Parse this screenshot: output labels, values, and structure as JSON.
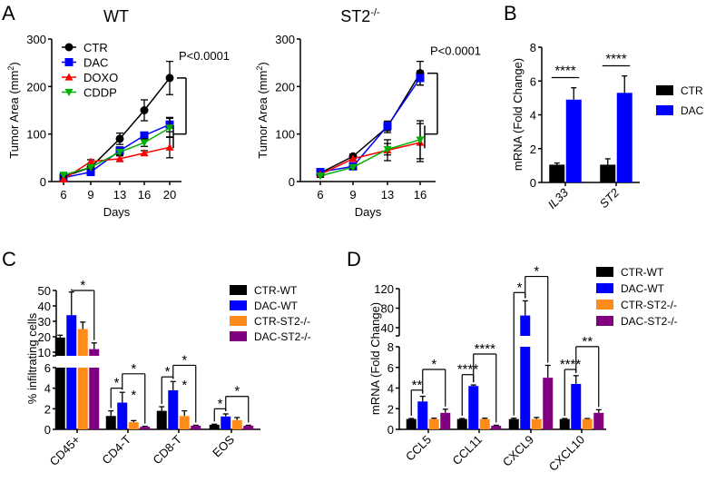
{
  "panel_labels": [
    "A",
    "B",
    "C",
    "D"
  ],
  "chart_data": [
    {
      "id": "A-WT",
      "type": "line",
      "title": "WT",
      "xlabel": "Days",
      "ylabel": {
        "main": "Tumor Area (mm",
        "sup": "2",
        "end": ")"
      },
      "categories": [
        "6",
        "9",
        "13",
        "16",
        "20"
      ],
      "ylim": [
        0,
        300
      ],
      "yticks": [
        0,
        100,
        200,
        300
      ],
      "legend": {
        "placement": "top-left",
        "entries": [
          "CTR",
          "DAC",
          "DOXO",
          "CDDP"
        ]
      },
      "series": [
        {
          "name": "CTR",
          "color": "#000000",
          "marker": "circle",
          "values": [
            10,
            30,
            90,
            150,
            218
          ],
          "errors": [
            3,
            5,
            12,
            22,
            35
          ]
        },
        {
          "name": "DAC",
          "color": "#0000ff",
          "marker": "square",
          "values": [
            8,
            20,
            65,
            97,
            120
          ],
          "errors": [
            3,
            5,
            8,
            6,
            15
          ]
        },
        {
          "name": "DOXO",
          "color": "#ff0000",
          "marker": "triangle-up",
          "values": [
            5,
            42,
            48,
            60,
            72
          ],
          "errors": [
            3,
            4,
            6,
            5,
            22
          ]
        },
        {
          "name": "CDDP",
          "color": "#00b000",
          "marker": "triangle-down",
          "values": [
            14,
            30,
            62,
            82,
            113
          ],
          "errors": [
            3,
            4,
            6,
            8,
            20
          ]
        }
      ],
      "annotation": "P<0.0001"
    },
    {
      "id": "A-ST2",
      "type": "line",
      "title": {
        "main": "ST2",
        "sup": "-/-"
      },
      "xlabel": "Days",
      "ylabel": {
        "main": "Tumor Area (mm",
        "sup": "2",
        "end": ")"
      },
      "categories": [
        "6",
        "9",
        "13",
        "16"
      ],
      "ylim": [
        0,
        300
      ],
      "yticks": [
        0,
        100,
        200,
        300
      ],
      "series": [
        {
          "name": "CTR",
          "color": "#000000",
          "marker": "circle",
          "values": [
            18,
            53,
            115,
            228
          ],
          "errors": [
            3,
            5,
            12,
            25
          ]
        },
        {
          "name": "DAC",
          "color": "#0000ff",
          "marker": "square",
          "values": [
            20,
            32,
            117,
            218
          ],
          "errors": [
            3,
            4,
            10,
            15
          ]
        },
        {
          "name": "DOXO",
          "color": "#ff0000",
          "marker": "triangle-up",
          "values": [
            15,
            48,
            66,
            82
          ],
          "errors": [
            3,
            5,
            22,
            40
          ]
        },
        {
          "name": "CDDP",
          "color": "#00b000",
          "marker": "triangle-down",
          "values": [
            12,
            30,
            68,
            88
          ],
          "errors": [
            3,
            4,
            12,
            40
          ]
        }
      ],
      "annotation": "P<0.0001"
    },
    {
      "id": "B",
      "type": "bar",
      "ylabel": "mRNA (Fold Change)",
      "categories": [
        "IL33",
        "ST2"
      ],
      "ylim": [
        0,
        8
      ],
      "yticks": [
        0,
        2,
        4,
        6,
        8
      ],
      "legend": {
        "placement": "right",
        "entries": [
          "CTR",
          "DAC"
        ]
      },
      "series": [
        {
          "name": "CTR",
          "color": "#000000",
          "values": [
            1.05,
            1.05
          ],
          "errors": [
            0.1,
            0.35
          ]
        },
        {
          "name": "DAC",
          "color": "#0000ff",
          "values": [
            4.9,
            5.3
          ],
          "errors": [
            0.7,
            1.0
          ]
        }
      ],
      "significance": [
        {
          "category": 0,
          "from": 0,
          "to": 1,
          "label": "****"
        },
        {
          "category": 1,
          "from": 0,
          "to": 1,
          "label": "****"
        }
      ]
    },
    {
      "id": "C",
      "type": "bar",
      "ylabel": "% infiltrating cells",
      "categories": [
        "CD45+",
        "CD4-T",
        "CD8-T",
        "EOS"
      ],
      "y_axis_break": {
        "lower": [
          0,
          6
        ],
        "upper": [
          10,
          50
        ]
      },
      "yticks_lower": [
        0,
        2,
        4,
        6
      ],
      "yticks_upper": [
        10,
        20,
        30,
        40,
        50
      ],
      "legend": {
        "placement": "top-right",
        "entries": [
          "CTR-WT",
          "DAC-WT",
          "CTR-ST2-/-",
          "DAC-ST2-/-"
        ]
      },
      "series": [
        {
          "name": "CTR-WT",
          "color": "#000000",
          "values": [
            19.5,
            1.3,
            1.8,
            0.45
          ],
          "errors": [
            1.5,
            0.5,
            0.4,
            0.05
          ]
        },
        {
          "name": "DAC-WT",
          "color": "#0000ff",
          "values": [
            34,
            2.6,
            3.8,
            1.25
          ],
          "errors": [
            15,
            1.0,
            0.85,
            0.25
          ]
        },
        {
          "name": "CTR-ST2-/-",
          "color": "#ff8c1a",
          "values": [
            25,
            0.7,
            1.3,
            0.9
          ],
          "errors": [
            4.5,
            0.15,
            0.5,
            0.25
          ]
        },
        {
          "name": "DAC-ST2-/-",
          "color": "#800080",
          "values": [
            12,
            0.25,
            0.35,
            0.35
          ],
          "errors": [
            4,
            0.05,
            0.05,
            0.05
          ]
        }
      ],
      "significance": [
        {
          "category": 0,
          "from": 1,
          "to": 3,
          "label": "*",
          "level": 50
        },
        {
          "category": 1,
          "from": 0,
          "to": 1,
          "label": "*",
          "level": 4.0
        },
        {
          "category": 1,
          "from": 1,
          "to": 3,
          "label": "*",
          "level": 5.4
        },
        {
          "category": 1,
          "at": 2,
          "label": "*",
          "level": 3.6
        },
        {
          "category": 2,
          "from": 0,
          "to": 1,
          "label": "*",
          "level": 5.1
        },
        {
          "category": 2,
          "from": 1,
          "to": 3,
          "label": "*",
          "level": 6.6
        },
        {
          "category": 2,
          "at": 2,
          "label": "*",
          "level": 4.6
        },
        {
          "category": 3,
          "from": 0,
          "to": 1,
          "label": "*",
          "level": 2.0
        },
        {
          "category": 3,
          "from": 1,
          "to": 3,
          "label": "*",
          "level": 3.2
        }
      ]
    },
    {
      "id": "D",
      "type": "bar",
      "ylabel": "mRNA (Fold Change)",
      "categories": [
        "CCL5",
        "CCL11",
        "CXCL9",
        "CXCL10"
      ],
      "y_axis_break": {
        "lower": [
          0,
          8
        ],
        "upper": [
          40,
          120
        ]
      },
      "yticks_lower": [
        0,
        2,
        4,
        6,
        8
      ],
      "yticks_upper": [
        40,
        80,
        120
      ],
      "legend": {
        "placement": "top-right",
        "entries": [
          "CTR-WT",
          "DAC-WT",
          "CTR-ST2-/-",
          "DAC-ST2-/-"
        ]
      },
      "series": [
        {
          "name": "CTR-WT",
          "color": "#000000",
          "values": [
            1,
            1,
            1,
            1
          ],
          "errors": [
            0.05,
            0.05,
            0.08,
            0.05
          ]
        },
        {
          "name": "DAC-WT",
          "color": "#0000ff",
          "values": [
            2.7,
            4.2,
            65,
            4.4
          ],
          "errors": [
            0.5,
            0.1,
            30,
            0.8
          ]
        },
        {
          "name": "CTR-ST2-/-",
          "color": "#ff8c1a",
          "values": [
            1,
            1,
            1,
            1
          ],
          "errors": [
            0.08,
            0.08,
            0.15,
            0.05
          ]
        },
        {
          "name": "DAC-ST2-/-",
          "color": "#800080",
          "values": [
            1.6,
            0.35,
            5,
            1.6
          ],
          "errors": [
            0.35,
            0.05,
            1.2,
            0.3
          ]
        }
      ],
      "significance": [
        {
          "category": 0,
          "from": 0,
          "to": 1,
          "label": "**",
          "level": 3.8
        },
        {
          "category": 0,
          "from": 1,
          "to": 3,
          "label": "*",
          "level": 5.8
        },
        {
          "category": 1,
          "from": 0,
          "to": 1,
          "label": "****",
          "level": 5.3
        },
        {
          "category": 1,
          "from": 1,
          "to": 3,
          "label": "****",
          "level": 7.3
        },
        {
          "category": 2,
          "from": 0,
          "to": 1,
          "label": "*",
          "level": 112
        },
        {
          "category": 2,
          "from": 1,
          "to": 3,
          "label": "*",
          "level": 145
        },
        {
          "category": 3,
          "from": 0,
          "to": 1,
          "label": "****",
          "level": 5.8
        },
        {
          "category": 3,
          "from": 1,
          "to": 3,
          "label": "**",
          "level": 8.2
        }
      ]
    }
  ]
}
